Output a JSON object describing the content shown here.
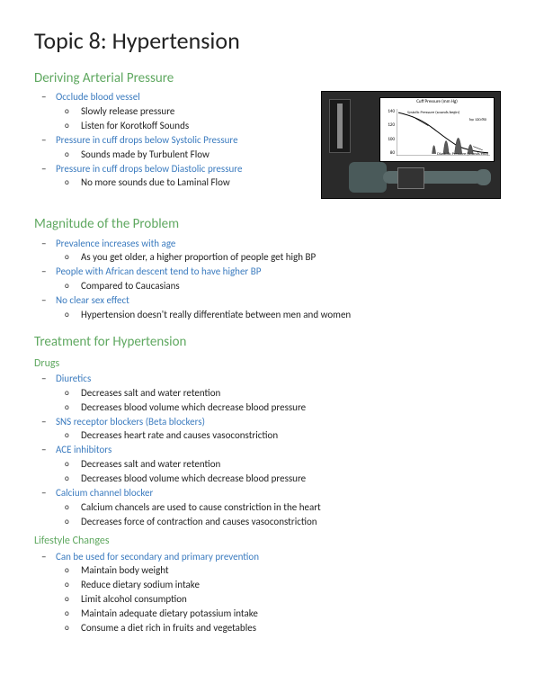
{
  "title": "Topic 8: Hypertension",
  "colors": {
    "section": "#5fa860",
    "subsection": "#5fa860",
    "highlight": "#3b7bbf",
    "body": "#222222"
  },
  "figure": {
    "chart_title": "Cuff Pressure (mm Hg)",
    "systolic_label": "Systolic Pressure (sounds begin)",
    "diastolic_label": "Diastolic Pressure (sounds end)",
    "bp_label": "bp 120/80",
    "y_ticks": [
      "140",
      "120",
      "100",
      "80"
    ]
  },
  "sections": [
    {
      "heading": "Deriving Arterial Pressure",
      "items": [
        {
          "text": "Occlude blood vessel",
          "sub": [
            "Slowly release pressure",
            "Listen for Korotkoff Sounds"
          ]
        },
        {
          "text": "Pressure in cuff drops below Systolic Pressure",
          "sub": [
            "Sounds made by Turbulent Flow"
          ]
        },
        {
          "text": "Pressure in cuff drops below Diastolic pressure",
          "sub": [
            "No more sounds due to Laminal Flow"
          ]
        }
      ]
    },
    {
      "heading": "Magnitude of the Problem",
      "items": [
        {
          "text": "Prevalence increases with age",
          "sub": [
            "As you get older, a higher proportion of people get high BP"
          ]
        },
        {
          "text": "People with African descent tend to have higher BP",
          "sub": [
            "Compared to Caucasians"
          ]
        },
        {
          "text": "No clear sex effect",
          "sub": [
            "Hypertension doesn't really differentiate between men and women"
          ]
        }
      ]
    },
    {
      "heading": "Treatment for Hypertension",
      "subsections": [
        {
          "heading": "Drugs",
          "items": [
            {
              "text": "Diuretics",
              "sub": [
                "Decreases salt and water retention",
                "Decreases blood volume which decrease blood pressure"
              ]
            },
            {
              "text": "SNS receptor blockers (Beta blockers)",
              "sub": [
                "Decreases heart rate and causes vasoconstriction"
              ]
            },
            {
              "text": "ACE inhibitors",
              "sub": [
                "Decreases salt and water retention",
                "Decreases blood volume which decrease blood pressure"
              ]
            },
            {
              "text": "Calcium channel blocker",
              "sub": [
                "Calcium chancels are used to cause constriction in the heart",
                "Decreases force of contraction and causes vasoconstriction"
              ]
            }
          ]
        },
        {
          "heading": "Lifestyle Changes",
          "items": [
            {
              "text": "Can be used for secondary and primary prevention",
              "sub": [
                "Maintain body weight",
                "Reduce dietary sodium intake",
                "Limit alcohol consumption",
                "Maintain adequate dietary potassium intake",
                "Consume a diet rich in fruits and vegetables"
              ]
            }
          ]
        }
      ]
    }
  ]
}
